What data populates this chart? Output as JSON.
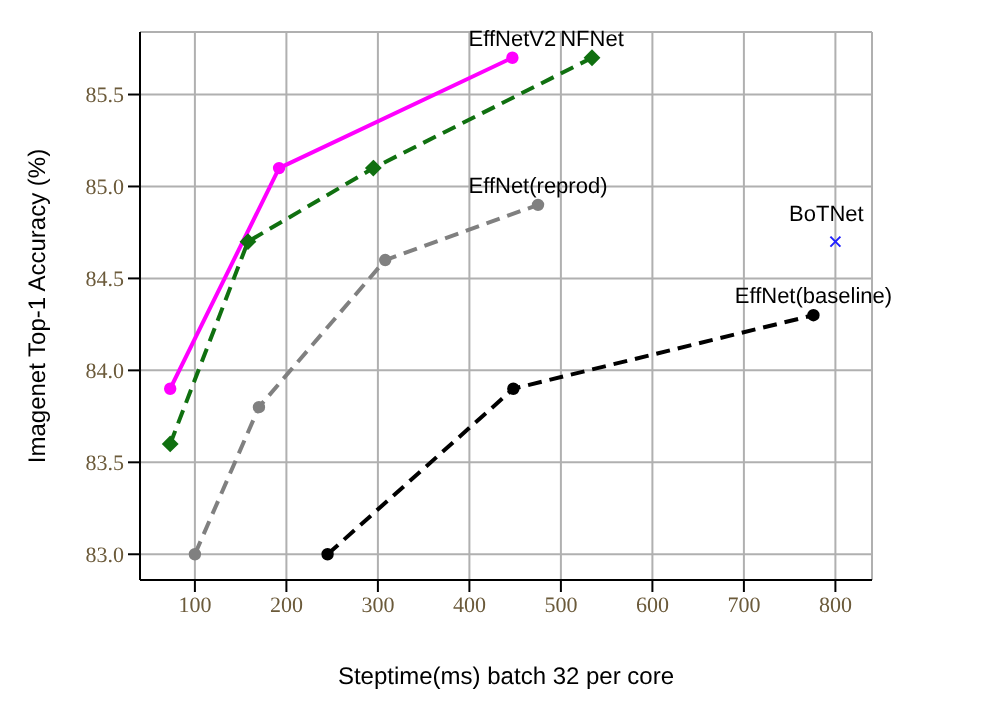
{
  "chart_data": {
    "type": "line",
    "xlabel": "Steptime(ms) batch 32 per core",
    "ylabel": "Imagenet Top-1 Accuracy (%)",
    "xlim": [
      40,
      840
    ],
    "xticks": [
      100,
      200,
      300,
      400,
      500,
      600,
      700,
      800
    ],
    "ylim": [
      82.86,
      85.84
    ],
    "yticks": [
      {
        "value": 83,
        "label": "83.0"
      },
      {
        "value": 83.5,
        "label": "83.5"
      },
      {
        "value": 84,
        "label": "84.0"
      },
      {
        "value": 84.5,
        "label": "84.5"
      },
      {
        "value": 85,
        "label": "85.0"
      },
      {
        "value": 85.5,
        "label": "85.5"
      }
    ],
    "grid": true,
    "legend": false,
    "series": [
      {
        "name": "EffNetV2",
        "color": "#ff00ff",
        "x": [
          73,
          192,
          447
        ],
        "values": [
          83.9,
          85.1,
          85.7
        ],
        "marker": "circle",
        "line_style": "solid"
      },
      {
        "name": "NFNet",
        "color": "#107010",
        "x": [
          73,
          158,
          295,
          534
        ],
        "values": [
          83.6,
          84.7,
          85.1,
          85.7
        ],
        "marker": "diamond",
        "line_style": "dashed"
      },
      {
        "name": "EffNet(reprod)",
        "color": "#808080",
        "x": [
          100,
          170,
          308,
          475
        ],
        "values": [
          83.0,
          83.8,
          84.6,
          84.9
        ],
        "marker": "circle",
        "line_style": "dashed"
      },
      {
        "name": "BoTNet",
        "type": "scatter",
        "color": "#2020ff",
        "x": [
          800
        ],
        "values": [
          84.7
        ],
        "marker": "cross"
      },
      {
        "name": "EffNet(baseline)",
        "color": "#000000",
        "x": [
          245,
          448,
          776
        ],
        "values": [
          83.0,
          83.9,
          84.3
        ],
        "marker": "circle",
        "line_style": "dashed"
      }
    ]
  }
}
